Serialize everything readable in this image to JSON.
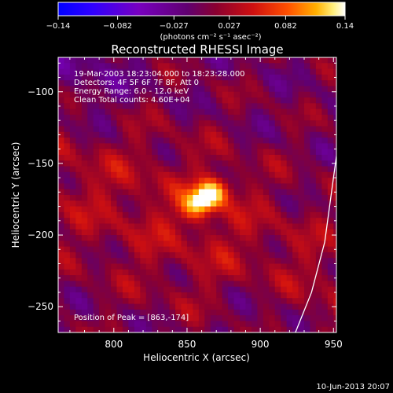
{
  "colorbar": {
    "min": -0.14,
    "max": 0.14,
    "tick_labels": [
      "−0.14",
      "−0.082",
      "−0.027",
      "0.027",
      "0.082",
      "0.14"
    ],
    "tick_values": [
      -0.14,
      -0.082,
      -0.027,
      0.027,
      0.082,
      0.14
    ],
    "unit_label": "(photons cm⁻² s⁻¹ asec⁻²)",
    "colors": [
      "#0000ff",
      "#2a00ff",
      "#6b00b0",
      "#5a0060",
      "#7a0040",
      "#c41010",
      "#ff3a00",
      "#ff8a00",
      "#ffd000",
      "#ffffe0",
      "#ffffff"
    ]
  },
  "chart_data": {
    "type": "heatmap",
    "title": "Reconstructed RHESSI Image",
    "xlabel": "Heliocentric X (arcsec)",
    "ylabel": "Heliocentric Y (arcsec)",
    "xlim": [
      762,
      952
    ],
    "ylim": [
      -268,
      -76
    ],
    "x_ticks": [
      800,
      850,
      900,
      950
    ],
    "y_ticks": [
      -100,
      -150,
      -200,
      -250
    ],
    "x_tick_labels": [
      "800",
      "850",
      "900",
      "950"
    ],
    "y_tick_labels": [
      "−100",
      "−150",
      "−200",
      "−250"
    ],
    "annotations": [
      "19-Mar-2003 18:23:04.000 to 18:23:28.000",
      "Detectors: 4F 5F 6F 7F 8F, Att 0",
      "Energy Range: 6.0 - 12.0 keV",
      "Clean    Total counts: 4.60E+04"
    ],
    "peak_label": "Position of Peak = [863,-174]",
    "peak": {
      "x": 863,
      "y": -174,
      "value": 0.14
    },
    "grid_resolution_arcsec": 4,
    "grid": false,
    "limb_curve": [
      [
        924,
        -268
      ],
      [
        935,
        -240
      ],
      [
        944,
        -205
      ],
      [
        952,
        -145
      ]
    ]
  },
  "footer": {
    "date": "10-Jun-2013 20:07"
  }
}
